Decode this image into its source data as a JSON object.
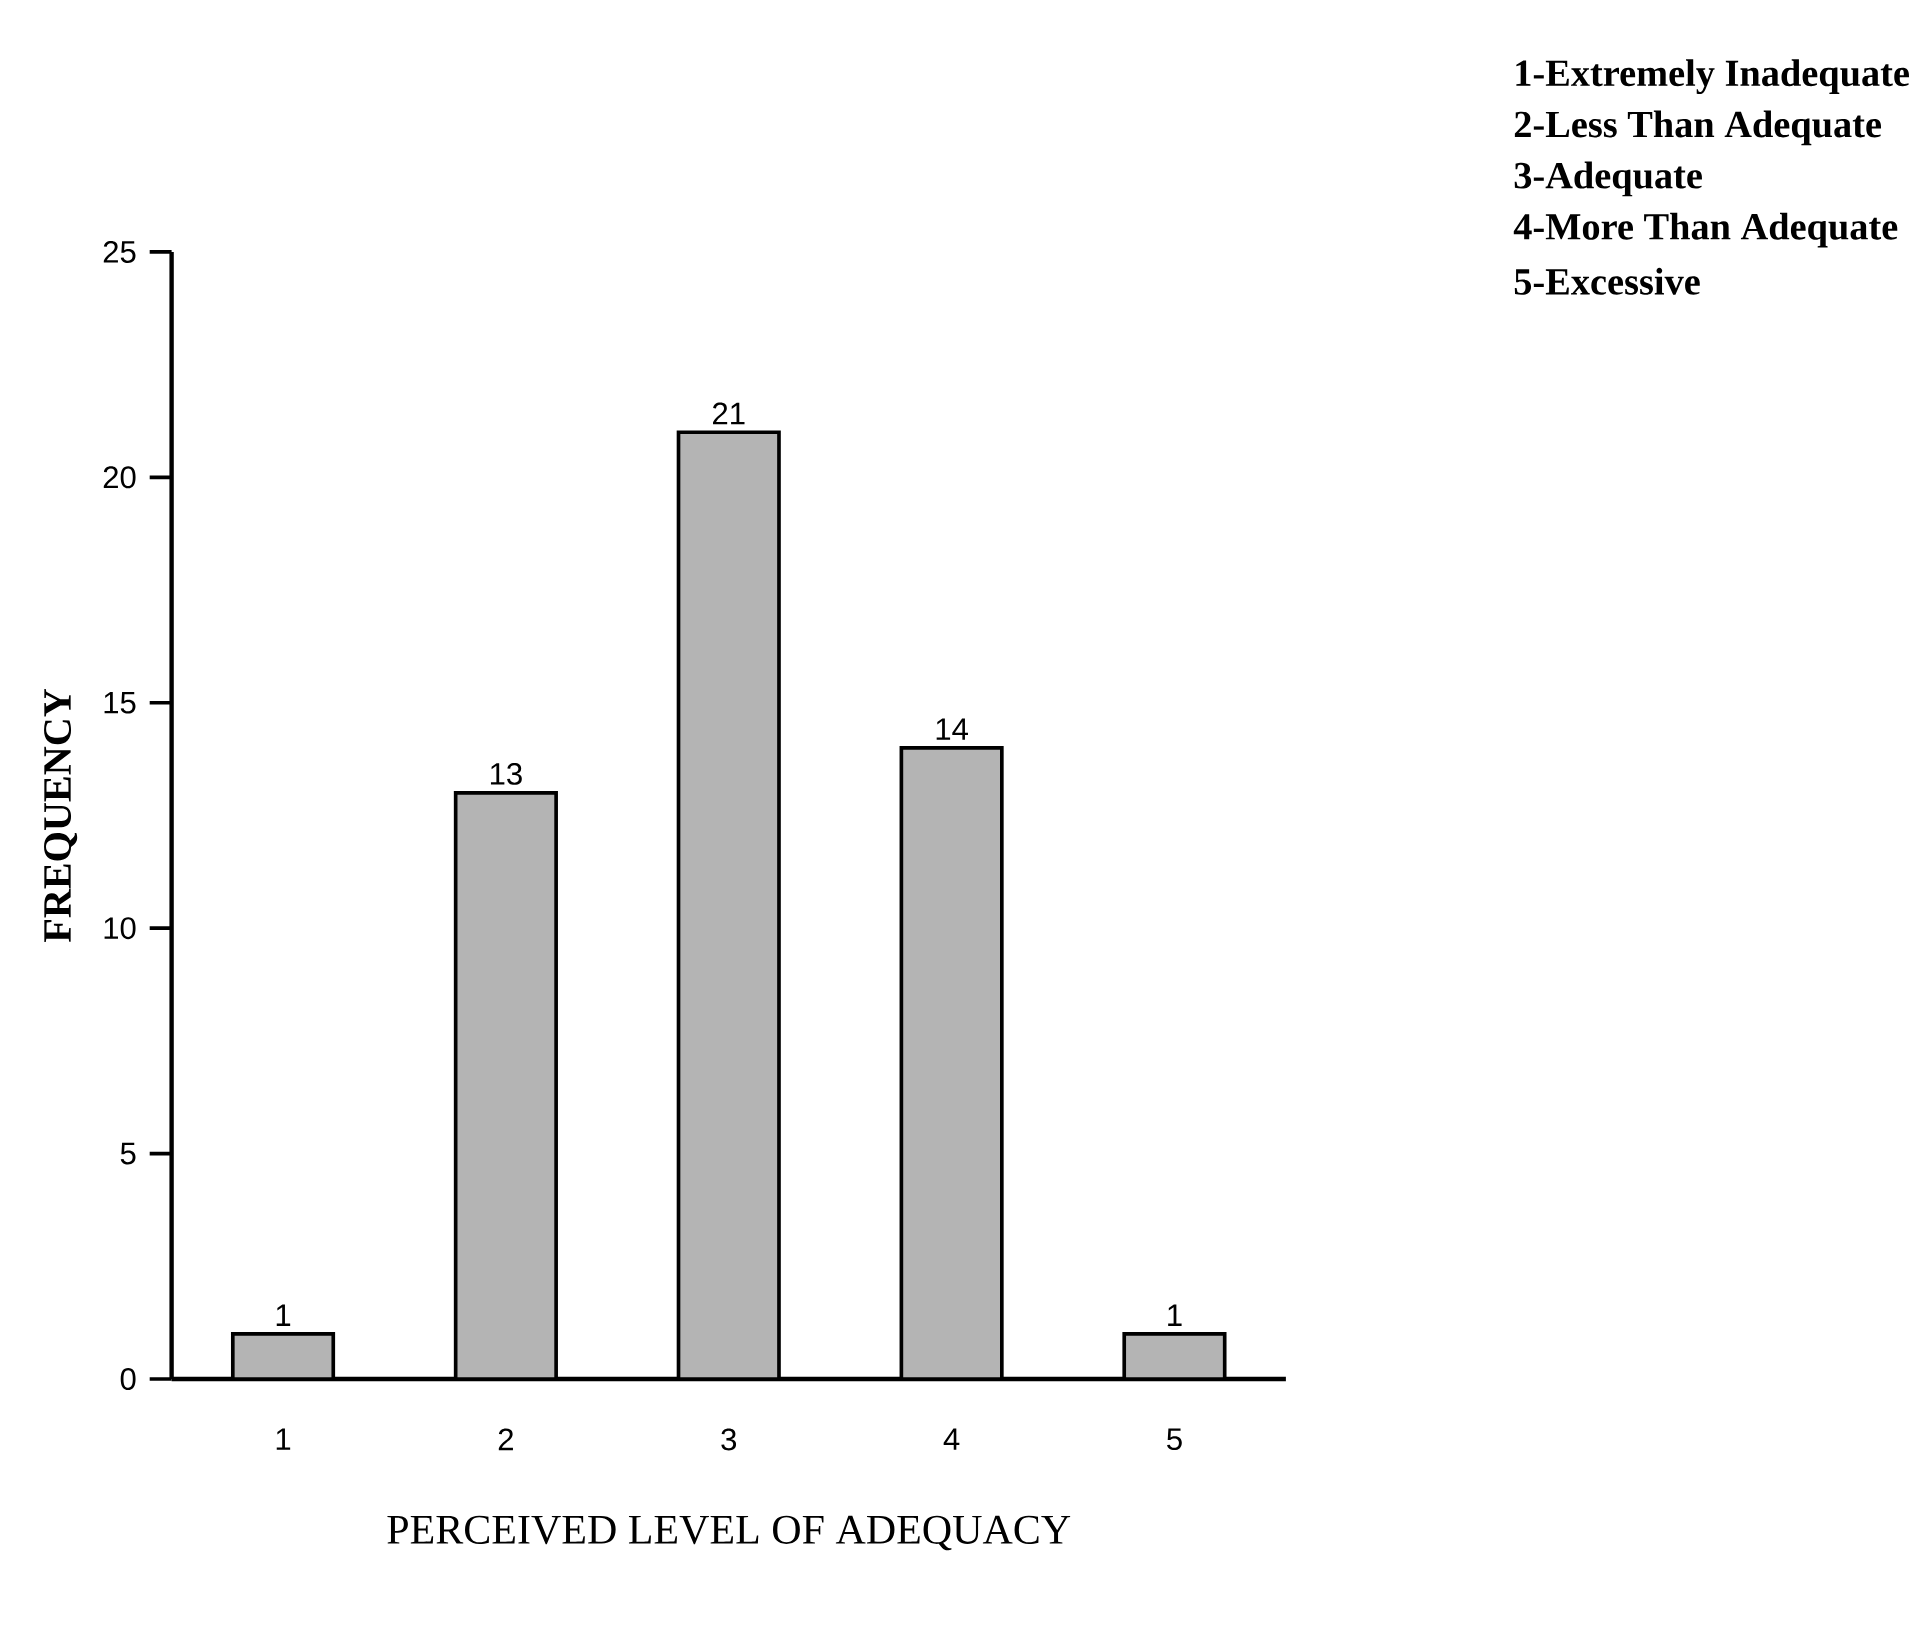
{
  "chart_data": {
    "type": "bar",
    "categories": [
      "1",
      "2",
      "3",
      "4",
      "5"
    ],
    "values": [
      1,
      13,
      21,
      14,
      1
    ],
    "color": "#b4b4b4",
    "xlabel": "PERCEIVED LEVEL OF ADEQUACY",
    "ylabel": "FREQUENCY",
    "ylim": [
      0,
      25
    ],
    "yticks": [
      0,
      5,
      10,
      15,
      20,
      25
    ],
    "data_labels": true,
    "grid": false,
    "annotations": [
      "1-Extremely Inadequate",
      "2-Less Than Adequate",
      "3-Adequate",
      "4-More Than Adequate",
      "5-Excessive"
    ]
  }
}
